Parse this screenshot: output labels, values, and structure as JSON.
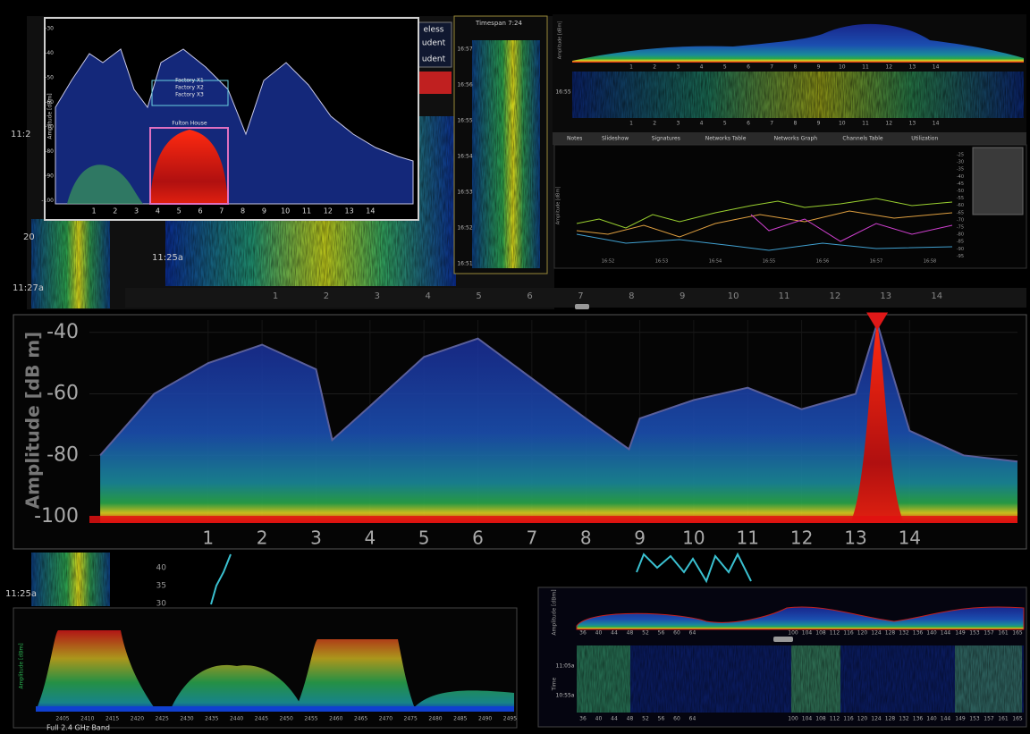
{
  "chart_data": {
    "type": "area",
    "y_label": "Amplitude [dB m]",
    "x": [
      -1,
      0,
      1,
      2,
      3,
      3.3,
      4,
      5,
      6,
      7,
      8,
      8.8,
      9,
      10,
      11,
      12,
      13,
      13.4,
      14,
      15,
      16
    ],
    "values": [
      -80,
      -60,
      -50,
      -44,
      -52,
      -75,
      -64,
      -48,
      -42,
      -55,
      -68,
      -78,
      -68,
      -62,
      -58,
      -65,
      -60,
      -37,
      -72,
      -80,
      -82
    ],
    "color": "#5a5f9a",
    "xlim": [
      -1.2,
      16.0
    ],
    "xticks": [
      1,
      2,
      3,
      4,
      5,
      6,
      7,
      8,
      9,
      10,
      11,
      12,
      13,
      14
    ],
    "ylim": [
      -102,
      -36
    ],
    "yticks": [
      -40,
      -60,
      -80,
      -100
    ]
  },
  "panels": {
    "top_left": {
      "y_label": "Amplitude [dBm]",
      "yticks": [
        -30,
        -40,
        -50,
        -60,
        -70,
        -80,
        -90,
        -100
      ],
      "xticks": [
        1,
        2,
        3,
        4,
        5,
        6,
        7,
        8,
        9,
        10,
        11,
        12,
        13,
        14
      ],
      "labels": [
        "Factory X1",
        "Factory X2",
        "Factory X3",
        "Fulton House"
      ]
    },
    "waterfall_bg": {
      "times": [
        "11:2",
        "20",
        "11:27a",
        "11:25a"
      ],
      "tabs": [
        "eless",
        "udent",
        "udent"
      ],
      "xticks": [
        1,
        2,
        3,
        4,
        5,
        6,
        7,
        8,
        9,
        10,
        11,
        12,
        13,
        14
      ]
    },
    "timeline": {
      "title": "Timespan 7:24",
      "times": [
        "16:57",
        "16:56",
        "16:55",
        "16:54",
        "16:53",
        "16:52",
        "16:51"
      ]
    },
    "top_right": {
      "y_label": "Amplitude [dBm]",
      "time": "16:55",
      "xticks": [
        1,
        2,
        3,
        4,
        5,
        6,
        7,
        8,
        9,
        10,
        11,
        12,
        13,
        14
      ]
    },
    "tabs": [
      "Notes",
      "Slideshow",
      "Signatures",
      "Networks Table",
      "Networks Graph",
      "Channels Table",
      "Utilization"
    ],
    "networks_graph": {
      "y_label": "Amplitude [dBm]",
      "yticks": [
        -25,
        -30,
        -35,
        -40,
        -45,
        -50,
        -55,
        -60,
        -65,
        -70,
        -75,
        -80,
        -85,
        -90,
        -95
      ],
      "times": [
        "16:52",
        "16:53",
        "16:54",
        "16:55",
        "16:56",
        "16:57",
        "16:58"
      ]
    },
    "mid_left": {
      "yticks": [
        40,
        35,
        30
      ],
      "time": "11:25a"
    },
    "band24": {
      "title": "Full 2.4 GHz Band",
      "y_label": "Amplitude [dBm]",
      "xticks": [
        2405,
        2410,
        2415,
        2420,
        2425,
        2430,
        2435,
        2440,
        2445,
        2450,
        2455,
        2460,
        2465,
        2470,
        2475,
        2480,
        2485,
        2490,
        2495
      ]
    },
    "band5": {
      "y_label": "Amplitude [dBm]",
      "time_label": "Time",
      "times": [
        "11:05a",
        "10:55a"
      ],
      "channels": [
        36,
        40,
        44,
        48,
        52,
        56,
        60,
        64,
        100,
        104,
        108,
        112,
        116,
        120,
        124,
        128,
        132,
        136,
        140,
        144,
        149,
        153,
        157,
        161,
        165
      ]
    }
  }
}
